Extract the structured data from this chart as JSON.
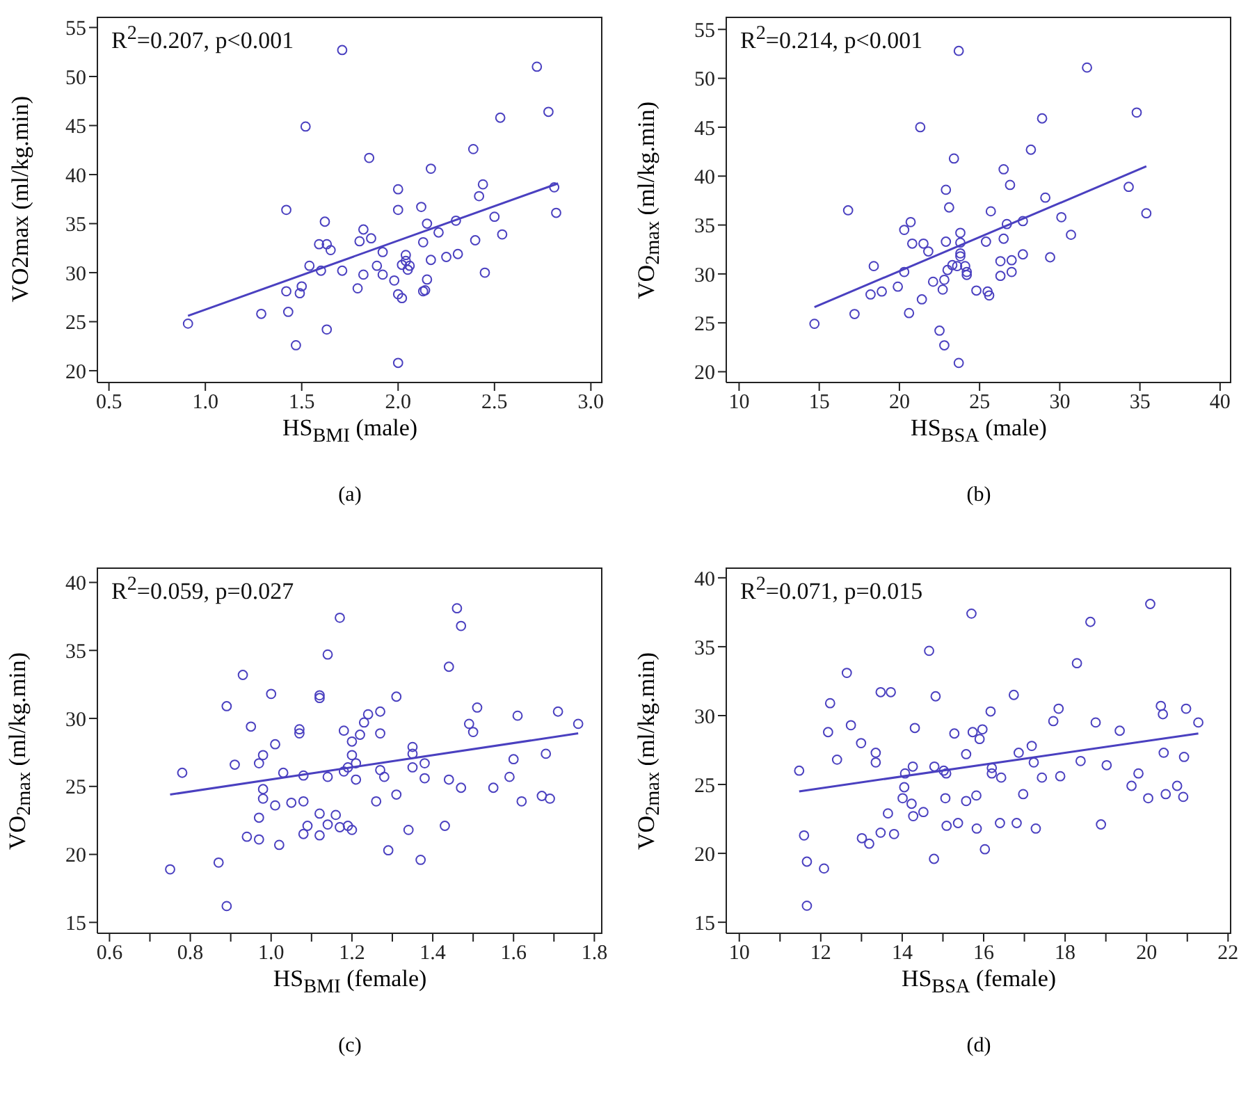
{
  "chart_data": [
    {
      "type": "scatter",
      "xlabel": "HS$_{BMI}$ (male)",
      "ylabel": "VO2max (ml/kg.min)",
      "annotations": [
        "R$^{2}$=0.207, p<0.001",
        "(a)"
      ],
      "xlim": [
        0.44,
        3.06
      ],
      "ylim": [
        18.8,
        56.1
      ],
      "xticks": [
        0.5,
        {
          "value": 1,
          "label": "1.0"
        },
        1.5,
        {
          "value": 2,
          "label": "2.0"
        },
        2.5,
        {
          "value": 3,
          "label": "3.0"
        }
      ],
      "yticks": [
        20,
        25,
        30,
        35,
        40,
        45,
        50,
        55
      ],
      "series": [
        {
          "color": "#4a40c0",
          "marker": "circle",
          "x": [
            0.91,
            1.29,
            1.42,
            1.42,
            1.43,
            1.47,
            1.5,
            1.49,
            1.52,
            1.54,
            1.6,
            1.59,
            1.62,
            1.63,
            1.65,
            1.63,
            1.71,
            1.71,
            1.79,
            1.8,
            1.82,
            1.82,
            1.86,
            1.85,
            1.89,
            1.92,
            1.92,
            1.98,
            2.0,
            2.0,
            2.0,
            2.02,
            2.0,
            2.04,
            2.04,
            2.02,
            2.05,
            2.06,
            2.12,
            2.13,
            2.15,
            2.15,
            2.13,
            2.14,
            2.17,
            2.17,
            2.21,
            2.25,
            2.3,
            2.31,
            2.39,
            2.4,
            2.42,
            2.44,
            2.45,
            2.5,
            2.53,
            2.54,
            2.72,
            2.78,
            2.81,
            2.82
          ],
          "values": [
            24.8,
            25.8,
            36.4,
            28.1,
            26.0,
            22.6,
            28.6,
            27.9,
            44.9,
            30.7,
            30.2,
            32.9,
            35.2,
            32.9,
            32.3,
            24.2,
            52.7,
            30.2,
            28.4,
            33.2,
            34.4,
            29.8,
            33.5,
            41.7,
            30.7,
            32.1,
            29.8,
            29.2,
            38.5,
            36.4,
            27.8,
            27.4,
            20.8,
            31.8,
            31.2,
            30.8,
            30.3,
            30.7,
            36.7,
            33.1,
            35.0,
            29.3,
            28.1,
            28.2,
            40.6,
            31.3,
            34.1,
            31.6,
            35.3,
            31.9,
            42.6,
            33.3,
            37.8,
            39.0,
            30.0,
            35.7,
            45.8,
            33.9,
            51.0,
            46.4,
            38.7,
            36.1
          ]
        },
        {
          "type": "line",
          "color": "#4a40c0",
          "x": [
            0.91,
            2.83
          ],
          "values": [
            25.6,
            39.1
          ]
        }
      ]
    },
    {
      "type": "scatter",
      "xlabel": "HS$_{BSA}$ (male)",
      "ylabel": "VO$_{2max}$ (ml/kg.min)",
      "annotations": [
        "R$^{2}$=0.214, p<0.001",
        "(b)"
      ],
      "xlim": [
        9.2,
        40.7
      ],
      "ylim": [
        18.9,
        56.3
      ],
      "xticks": [
        10,
        15,
        20,
        25,
        30,
        35,
        40
      ],
      "yticks": [
        20,
        25,
        30,
        35,
        40,
        45,
        50,
        55
      ],
      "series": [
        {
          "color": "#4a40c0",
          "marker": "circle",
          "x": [
            14.7,
            16.8,
            17.2,
            18.2,
            18.4,
            18.9,
            19.9,
            20.3,
            20.3,
            20.7,
            20.8,
            20.6,
            21.3,
            21.4,
            21.5,
            21.8,
            22.1,
            22.5,
            22.7,
            22.8,
            22.8,
            22.9,
            22.9,
            23.1,
            23.0,
            23.3,
            23.4,
            23.6,
            23.7,
            23.7,
            23.8,
            23.8,
            23.8,
            23.8,
            24.1,
            24.2,
            24.2,
            24.8,
            25.4,
            25.5,
            25.6,
            25.7,
            26.3,
            26.3,
            26.5,
            26.5,
            26.7,
            26.9,
            27.0,
            27.0,
            27.7,
            27.7,
            28.2,
            28.9,
            29.1,
            29.4,
            30.1,
            30.7,
            31.7,
            34.3,
            34.8,
            35.4
          ],
          "values": [
            24.9,
            36.5,
            25.9,
            27.9,
            30.8,
            28.2,
            28.7,
            34.5,
            30.2,
            35.3,
            33.1,
            26.0,
            45.0,
            27.4,
            33.1,
            32.3,
            29.2,
            24.2,
            28.4,
            29.4,
            22.7,
            38.6,
            33.3,
            36.8,
            30.4,
            30.9,
            41.8,
            30.8,
            52.8,
            20.9,
            34.2,
            33.2,
            32.1,
            31.8,
            30.8,
            29.9,
            30.2,
            28.3,
            33.3,
            28.2,
            27.8,
            36.4,
            31.3,
            29.8,
            40.7,
            33.6,
            35.1,
            39.1,
            31.4,
            30.2,
            35.4,
            32.0,
            42.7,
            45.9,
            37.8,
            31.7,
            35.8,
            34.0,
            51.1,
            38.9,
            46.5,
            36.2
          ]
        },
        {
          "type": "line",
          "color": "#4a40c0",
          "x": [
            14.7,
            35.4
          ],
          "values": [
            26.6,
            41.0
          ]
        }
      ]
    },
    {
      "type": "scatter",
      "xlabel": "HS$_{BMI}$ (female)",
      "ylabel": "VO$_{2max}$ (ml/kg.min)",
      "annotations": [
        "R$^{2}$=0.059, p=0.027",
        "(c)"
      ],
      "xlim": [
        0.57,
        1.82
      ],
      "ylim": [
        14.2,
        41.1
      ],
      "xticks": [
        0.6,
        {
          "value": 0.7,
          "label": null
        },
        0.8,
        {
          "value": 0.9,
          "label": null
        },
        {
          "value": 1,
          "label": "1.0"
        },
        {
          "value": 1.1,
          "label": null
        },
        1.2,
        {
          "value": 1.3,
          "label": null
        },
        1.4,
        {
          "value": 1.5,
          "label": null
        },
        1.6,
        {
          "value": 1.7,
          "label": null
        },
        1.8
      ],
      "yticks": [
        15,
        20,
        25,
        30,
        35,
        40
      ],
      "series": [
        {
          "color": "#4a40c0",
          "marker": "circle",
          "x": [
            0.75,
            0.78,
            0.87,
            0.89,
            0.89,
            0.91,
            0.93,
            0.94,
            0.95,
            0.97,
            0.97,
            0.97,
            0.98,
            0.98,
            0.98,
            1.0,
            1.01,
            1.01,
            1.02,
            1.03,
            1.05,
            1.07,
            1.07,
            1.08,
            1.08,
            1.08,
            1.09,
            1.12,
            1.12,
            1.12,
            1.12,
            1.14,
            1.14,
            1.14,
            1.16,
            1.17,
            1.17,
            1.18,
            1.18,
            1.19,
            1.19,
            1.2,
            1.2,
            1.2,
            1.21,
            1.21,
            1.22,
            1.23,
            1.24,
            1.26,
            1.27,
            1.27,
            1.27,
            1.28,
            1.29,
            1.31,
            1.31,
            1.34,
            1.35,
            1.35,
            1.35,
            1.37,
            1.38,
            1.38,
            1.43,
            1.44,
            1.44,
            1.46,
            1.47,
            1.47,
            1.49,
            1.5,
            1.51,
            1.55,
            1.59,
            1.6,
            1.61,
            1.62,
            1.67,
            1.68,
            1.69,
            1.71,
            1.76
          ],
          "values": [
            18.9,
            26.0,
            19.4,
            30.9,
            16.2,
            26.6,
            33.2,
            21.3,
            29.4,
            26.7,
            22.7,
            21.1,
            27.3,
            24.8,
            24.1,
            31.8,
            28.1,
            23.6,
            20.7,
            26.0,
            23.8,
            29.2,
            28.9,
            25.8,
            23.9,
            21.5,
            22.1,
            31.7,
            31.5,
            23.0,
            21.4,
            34.7,
            25.7,
            22.2,
            22.9,
            37.4,
            22.0,
            29.1,
            26.1,
            26.4,
            22.1,
            28.3,
            27.3,
            21.8,
            26.7,
            25.5,
            28.8,
            29.7,
            30.3,
            23.9,
            30.5,
            28.9,
            26.2,
            25.7,
            20.3,
            31.6,
            24.4,
            21.8,
            27.9,
            27.4,
            26.4,
            19.6,
            26.7,
            25.6,
            22.1,
            33.8,
            25.5,
            38.1,
            36.8,
            24.9,
            29.6,
            29.0,
            30.8,
            24.9,
            25.7,
            27.0,
            30.2,
            23.9,
            24.3,
            27.4,
            24.1,
            30.5,
            29.6
          ]
        },
        {
          "type": "line",
          "color": "#4a40c0",
          "x": [
            0.75,
            1.76
          ],
          "values": [
            24.4,
            28.9
          ]
        }
      ]
    },
    {
      "type": "scatter",
      "xlabel": "HS$_{BSA}$ (female)",
      "ylabel": "VO$_{2max}$ (ml/kg.min)",
      "annotations": [
        "R$^{2}$=0.071, p=0.015",
        "(d)"
      ],
      "xlim": [
        9.68,
        22.08
      ],
      "ylim": [
        14.2,
        40.75
      ],
      "xticks": [
        10,
        {
          "value": 11,
          "label": null
        },
        12,
        {
          "value": 13,
          "label": null
        },
        14,
        {
          "value": 15,
          "label": null
        },
        16,
        {
          "value": 17,
          "label": null
        },
        18,
        {
          "value": 19,
          "label": null
        },
        20,
        {
          "value": 21,
          "label": null
        },
        22
      ],
      "yticks": [
        15,
        20,
        25,
        30,
        35,
        40
      ],
      "series": [
        {
          "color": "#4a40c0",
          "marker": "circle",
          "x": [
            11.47,
            11.59,
            11.66,
            11.66,
            12.08,
            12.18,
            12.23,
            12.4,
            12.64,
            12.74,
            12.99,
            13.01,
            13.19,
            13.35,
            13.35,
            13.47,
            13.47,
            13.65,
            13.72,
            13.8,
            14.01,
            14.05,
            14.07,
            14.23,
            14.26,
            14.27,
            14.31,
            14.52,
            14.66,
            14.78,
            14.79,
            14.82,
            15.02,
            15.06,
            15.08,
            15.09,
            15.28,
            15.37,
            15.57,
            15.57,
            15.7,
            15.73,
            15.82,
            15.83,
            15.9,
            15.97,
            16.03,
            16.17,
            16.2,
            16.2,
            16.4,
            16.43,
            16.74,
            16.81,
            16.86,
            16.97,
            17.18,
            17.23,
            17.28,
            17.43,
            17.71,
            17.84,
            17.88,
            18.29,
            18.38,
            18.62,
            18.75,
            18.88,
            19.02,
            19.34,
            19.63,
            19.8,
            20.04,
            20.09,
            20.35,
            20.4,
            20.42,
            20.47,
            20.75,
            20.9,
            20.92,
            20.97,
            21.27
          ],
          "values": [
            26.0,
            21.3,
            19.4,
            16.2,
            18.9,
            28.8,
            30.9,
            26.8,
            33.1,
            29.3,
            28.0,
            21.1,
            20.7,
            27.3,
            26.6,
            31.7,
            21.5,
            22.9,
            31.7,
            21.4,
            24.0,
            24.8,
            25.8,
            23.6,
            26.3,
            22.7,
            29.1,
            23.0,
            34.7,
            19.6,
            26.3,
            31.4,
            26.0,
            24.0,
            25.8,
            22.0,
            28.7,
            22.2,
            27.2,
            23.8,
            37.4,
            28.8,
            24.2,
            21.8,
            28.3,
            29.0,
            20.3,
            30.3,
            26.2,
            25.8,
            22.2,
            25.5,
            31.5,
            22.2,
            27.3,
            24.3,
            27.8,
            26.6,
            21.8,
            25.5,
            29.6,
            30.5,
            25.6,
            33.8,
            26.7,
            36.8,
            29.5,
            22.1,
            26.4,
            28.9,
            24.9,
            25.8,
            24.0,
            38.1,
            30.7,
            30.1,
            27.3,
            24.3,
            24.9,
            24.1,
            27.0,
            30.5,
            29.5
          ]
        },
        {
          "type": "line",
          "color": "#4a40c0",
          "x": [
            11.47,
            21.27
          ],
          "values": [
            24.5,
            28.7
          ]
        }
      ]
    }
  ]
}
